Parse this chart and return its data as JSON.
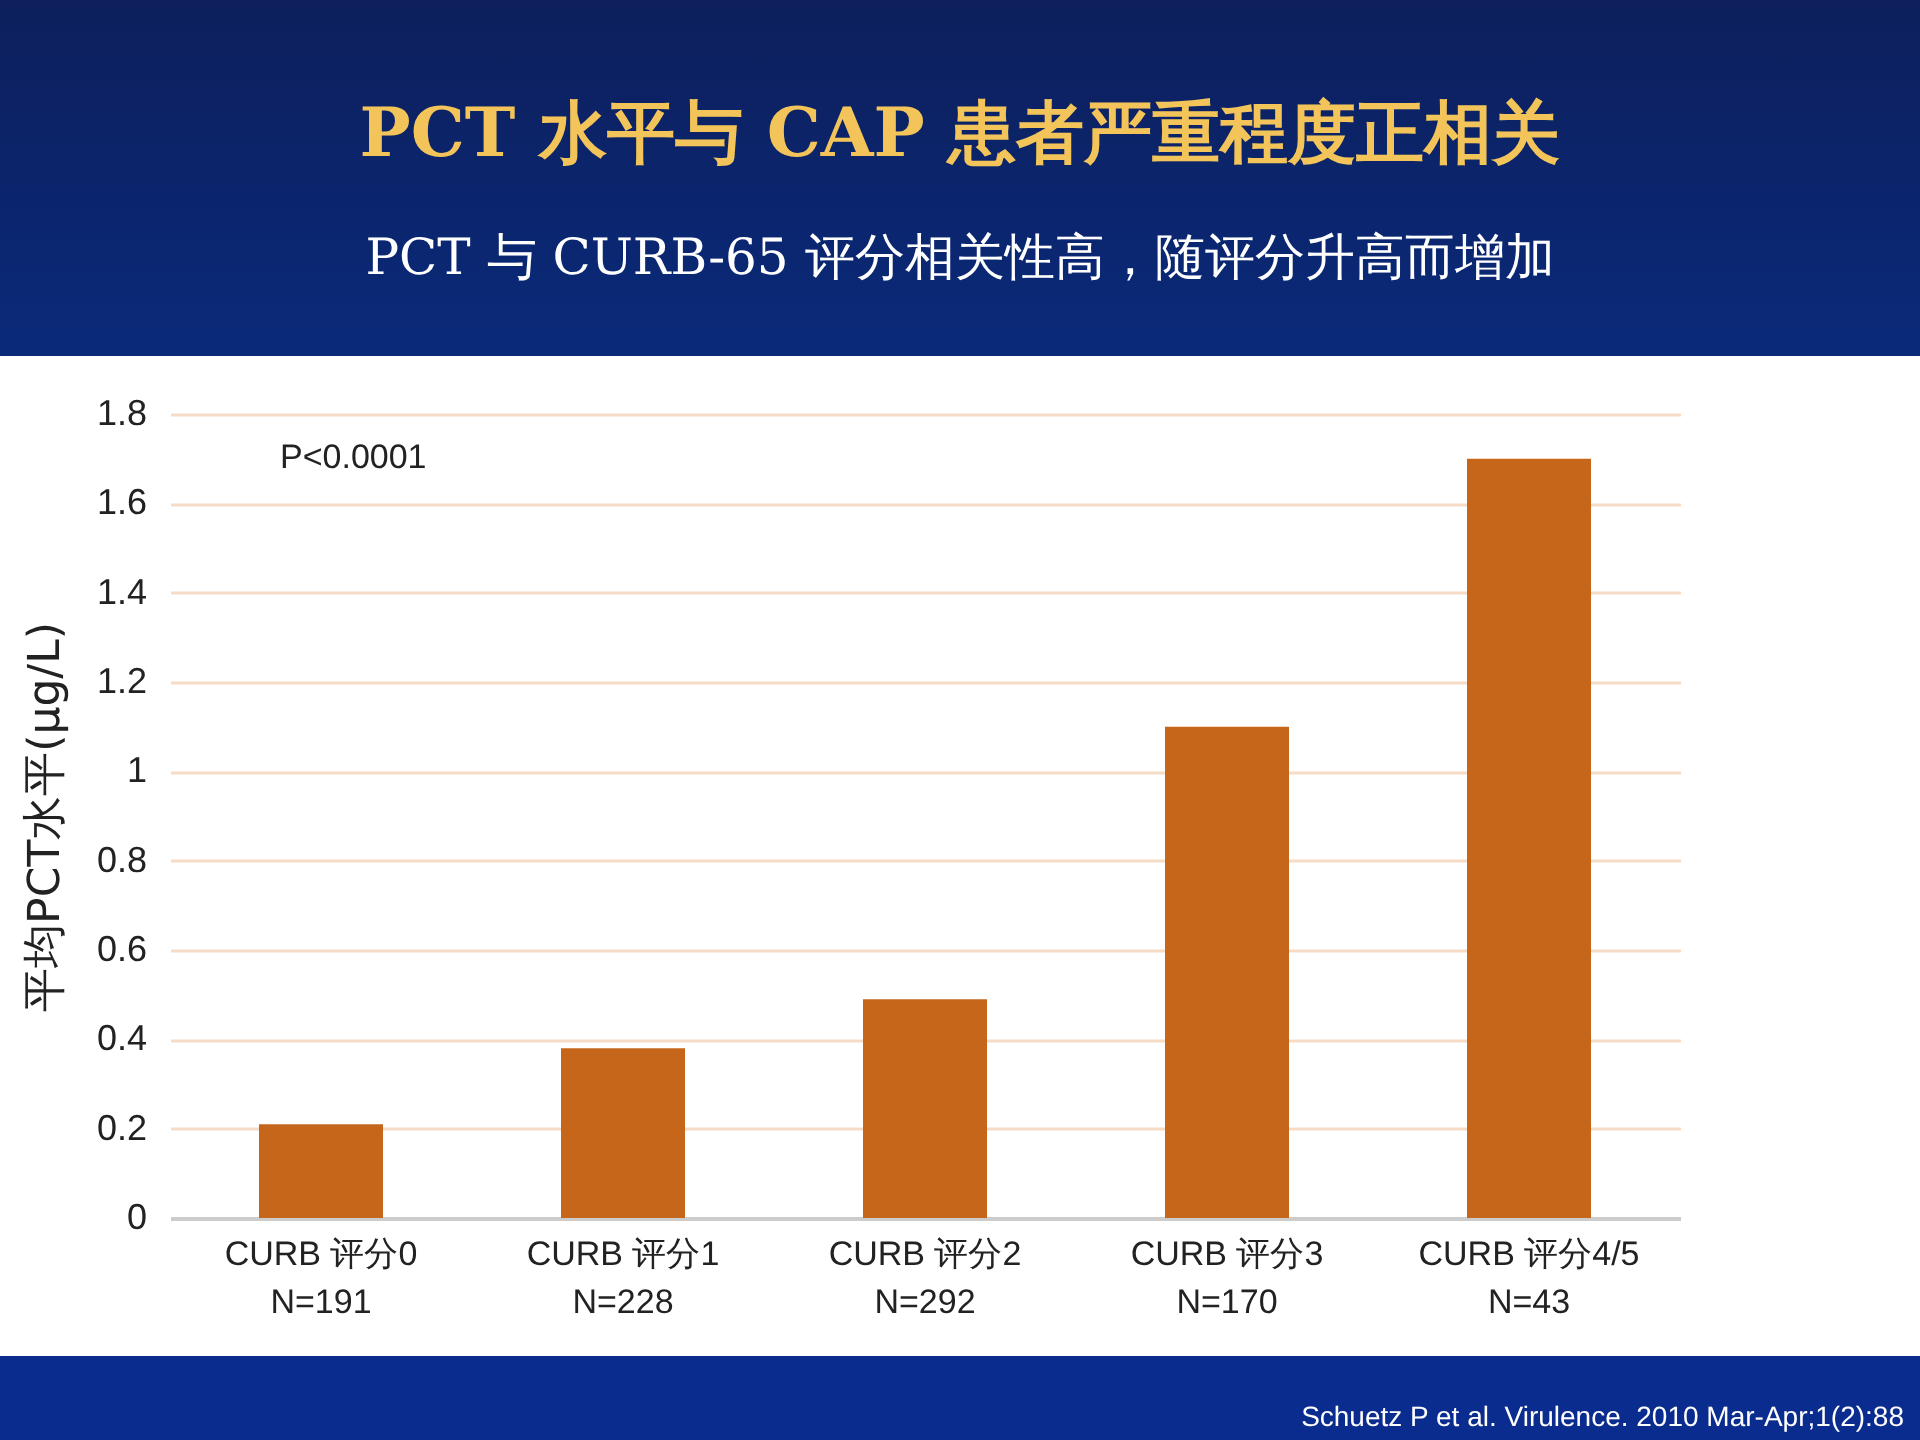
{
  "chart_data": {
    "type": "bar",
    "title": "PCT 水平与 CAP 患者严重程度正相关",
    "subtitle": "PCT 与 CURB-65 评分相关性高，随评分升高而增加",
    "ylabel": "平均PCT水平(μg/L)",
    "categories": [
      "CURB 评分0\nN=191",
      "CURB 评分1\nN=228",
      "CURB 评分2\nN=292",
      "CURB 评分3\nN=170",
      "CURB 评分4/5\nN=43"
    ],
    "values": [
      0.21,
      0.38,
      0.49,
      1.1,
      1.7
    ],
    "color": "#c5661a",
    "ylim": [
      0,
      1.8
    ],
    "yticks": [
      0,
      0.2,
      0.4,
      0.6,
      0.8,
      1,
      1.2,
      1.4,
      1.6,
      1.8
    ],
    "grid": true,
    "annotations": [
      "P<0.0001",
      "Schuetz P et al. Virulence. 2010 Mar-Apr;1(2):88"
    ]
  }
}
